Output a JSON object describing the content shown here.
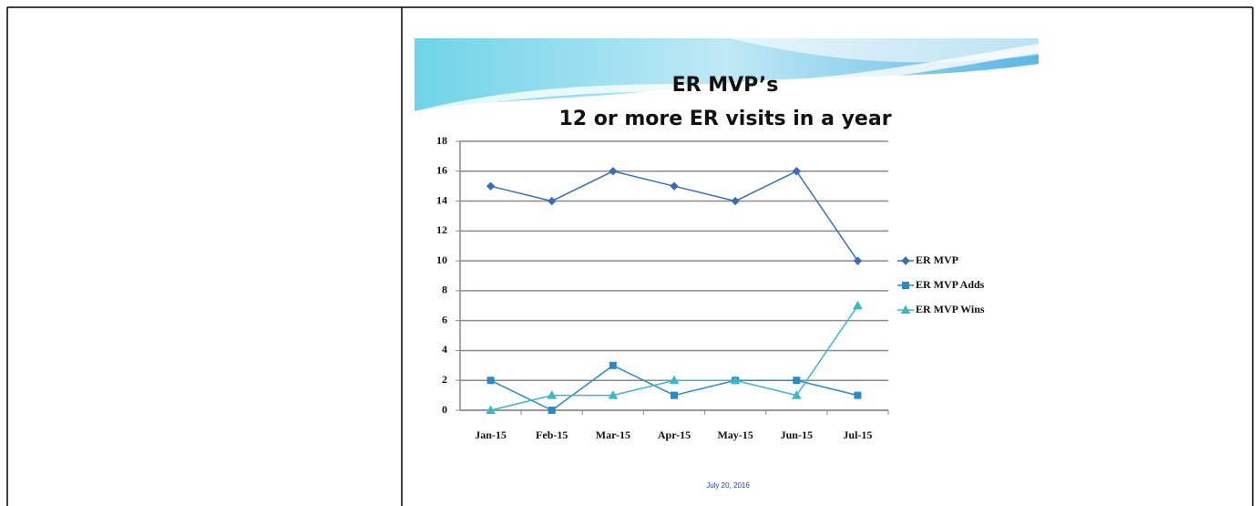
{
  "chart_data": {
    "type": "line",
    "title": "ER MVP’s",
    "subtitle": "12 or more ER visits in a year",
    "footer": "July 20, 2016",
    "categories": [
      "Jan-15",
      "Feb-15",
      "Mar-15",
      "Apr-15",
      "May-15",
      "Jun-15",
      "Jul-15"
    ],
    "series": [
      {
        "name": "ER MVP",
        "color": "#3a6db5",
        "marker": "diamond",
        "values": [
          15,
          14,
          16,
          15,
          14,
          16,
          10
        ]
      },
      {
        "name": "ER MVP Adds",
        "color": "#2b8ac0",
        "marker": "square",
        "values": [
          2,
          0,
          3,
          1,
          2,
          2,
          1
        ]
      },
      {
        "name": "ER MVP Wins",
        "color": "#3bb8c6",
        "marker": "triangle",
        "values": [
          0,
          1,
          1,
          2,
          2,
          1,
          7
        ]
      }
    ],
    "ylim": [
      0,
      18
    ],
    "yticks": [
      0,
      2,
      4,
      6,
      8,
      10,
      12,
      14,
      16,
      18
    ],
    "grid": true,
    "legend": "right"
  }
}
